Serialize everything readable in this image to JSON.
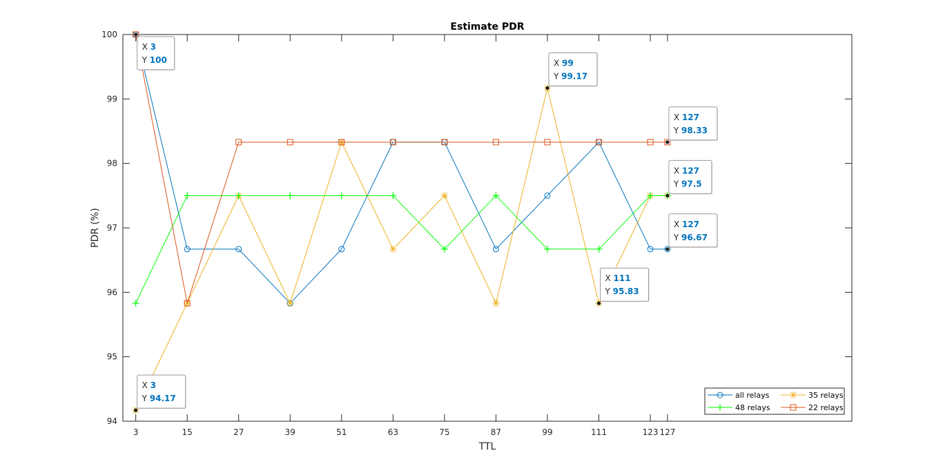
{
  "chart_data": {
    "type": "line",
    "title": "Estimate PDR",
    "xlabel": "TTL",
    "ylabel": "PDR (%)",
    "xlim": [
      0,
      170
    ],
    "ylim": [
      94,
      100
    ],
    "x_ticks": [
      3,
      15,
      27,
      39,
      51,
      63,
      75,
      87,
      99,
      111,
      123,
      127
    ],
    "y_ticks": [
      94,
      95,
      96,
      97,
      98,
      99,
      100
    ],
    "grid": false,
    "legend_position": "bottom-right",
    "legend_columns": 2,
    "x": [
      3,
      15,
      27,
      39,
      51,
      63,
      75,
      87,
      99,
      111,
      123,
      127
    ],
    "series": [
      {
        "name": "all relays",
        "color": "#0072BD",
        "marker": "circle",
        "values": [
          100,
          96.67,
          96.67,
          95.83,
          96.67,
          98.33,
          98.33,
          96.67,
          97.5,
          98.33,
          96.67,
          96.67
        ]
      },
      {
        "name": "35 relays",
        "color": "#EDB120",
        "marker": "asterisk",
        "values": [
          94.17,
          95.83,
          97.5,
          95.83,
          98.33,
          96.67,
          97.5,
          95.83,
          99.17,
          95.83,
          97.5,
          97.5
        ]
      },
      {
        "name": "48 relays",
        "color": "#00FF00",
        "marker": "plus",
        "values": [
          95.83,
          97.5,
          97.5,
          97.5,
          97.5,
          97.5,
          96.67,
          97.5,
          96.67,
          96.67,
          97.5,
          97.5
        ]
      },
      {
        "name": "22 relays",
        "color": "#D95319",
        "marker": "square",
        "values": [
          100,
          95.83,
          98.33,
          98.33,
          98.33,
          98.33,
          98.33,
          98.33,
          98.33,
          98.33,
          98.33,
          98.33
        ]
      }
    ],
    "legend_order": [
      0,
      1,
      2,
      3
    ],
    "datatips": [
      {
        "x": 3,
        "y": 100,
        "x_label": "3",
        "y_label": "100",
        "placement": "below-right"
      },
      {
        "x": 3,
        "y": 94.17,
        "x_label": "3",
        "y_label": "94.17",
        "placement": "above-right"
      },
      {
        "x": 99,
        "y": 99.17,
        "x_label": "99",
        "y_label": "99.17",
        "placement": "above-right"
      },
      {
        "x": 127,
        "y": 98.33,
        "x_label": "127",
        "y_label": "98.33",
        "placement": "above-right"
      },
      {
        "x": 127,
        "y": 97.5,
        "x_label": "127",
        "y_label": "97.5",
        "placement": "above-right"
      },
      {
        "x": 127,
        "y": 96.67,
        "x_label": "127",
        "y_label": "96.67",
        "placement": "above-right"
      },
      {
        "x": 111,
        "y": 95.83,
        "x_label": "111",
        "y_label": "95.83",
        "placement": "above-right"
      }
    ]
  }
}
